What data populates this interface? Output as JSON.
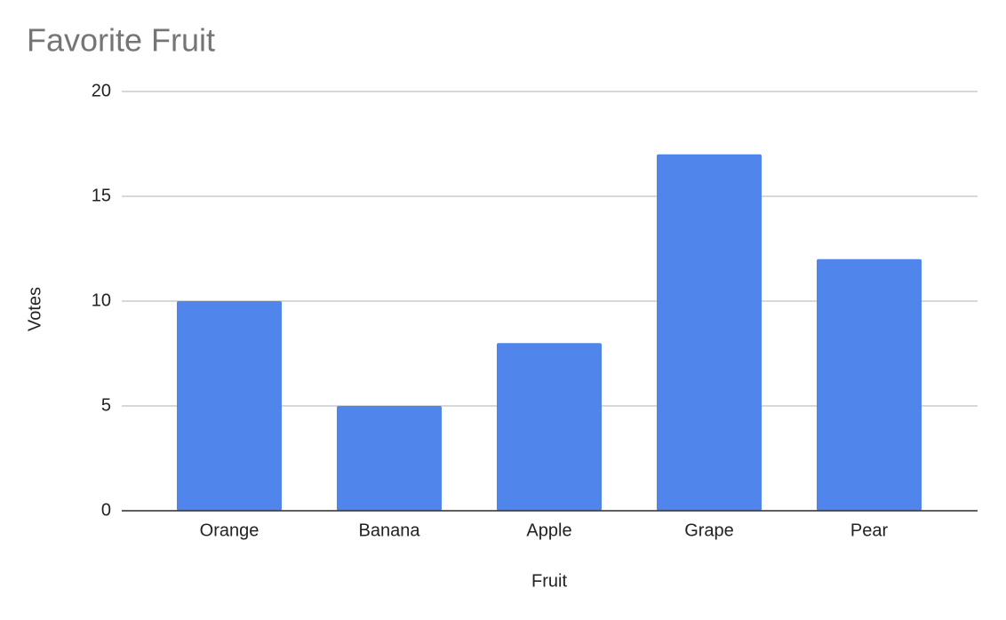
{
  "chart_data": {
    "type": "bar",
    "title": "Favorite Fruit",
    "x_label": "Fruit",
    "y_label": "Votes",
    "categories": [
      "Orange",
      "Banana",
      "Apple",
      "Grape",
      "Pear"
    ],
    "values": [
      10,
      5,
      8,
      17,
      12
    ],
    "color": "#5086ec",
    "ylim": [
      0,
      20
    ],
    "yticks": [
      0,
      5,
      10,
      15,
      20
    ],
    "grid": true
  }
}
